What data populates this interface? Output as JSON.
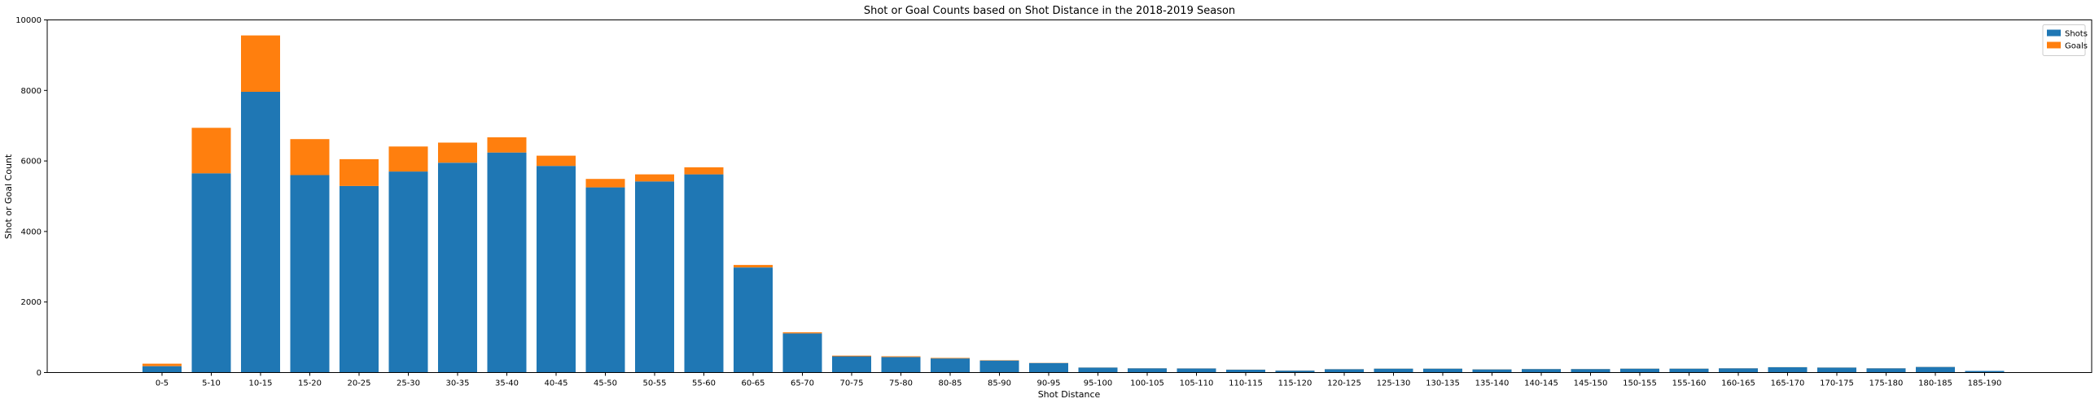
{
  "chart_data": {
    "type": "bar",
    "stacked": true,
    "title": "Shot or Goal Counts based on Shot Distance in the 2018-2019 Season",
    "xlabel": "Shot Distance",
    "ylabel": "Shot or Goal Count",
    "ylim": [
      0,
      10000
    ],
    "yticks": [
      0,
      2000,
      4000,
      6000,
      8000,
      10000
    ],
    "grid": false,
    "legend_position": "top-right",
    "categories": [
      "0-5",
      "5-10",
      "10-15",
      "15-20",
      "20-25",
      "25-30",
      "30-35",
      "35-40",
      "40-45",
      "45-50",
      "50-55",
      "55-60",
      "60-65",
      "65-70",
      "70-75",
      "75-80",
      "80-85",
      "85-90",
      "90-95",
      "95-100",
      "100-105",
      "105-110",
      "110-115",
      "115-120",
      "120-125",
      "125-130",
      "130-135",
      "135-140",
      "140-145",
      "145-150",
      "150-155",
      "155-160",
      "160-165",
      "165-170",
      "170-175",
      "175-180",
      "180-185",
      "185-190"
    ],
    "series": [
      {
        "name": "Shots",
        "color": "#1f77b4",
        "values": [
          180,
          5650,
          7960,
          5600,
          5290,
          5700,
          5950,
          6240,
          5860,
          5250,
          5420,
          5620,
          2980,
          1110,
          460,
          440,
          400,
          340,
          270,
          140,
          120,
          115,
          80,
          55,
          95,
          110,
          110,
          90,
          100,
          100,
          110,
          110,
          120,
          150,
          140,
          120,
          160,
          45
        ]
      },
      {
        "name": "Goals",
        "color": "#ff7f0e",
        "values": [
          70,
          1290,
          1600,
          1020,
          760,
          710,
          570,
          430,
          290,
          240,
          200,
          200,
          70,
          30,
          20,
          20,
          15,
          10,
          5,
          3,
          3,
          3,
          2,
          2,
          2,
          2,
          2,
          2,
          2,
          2,
          2,
          2,
          2,
          2,
          2,
          2,
          2,
          1
        ]
      }
    ]
  }
}
